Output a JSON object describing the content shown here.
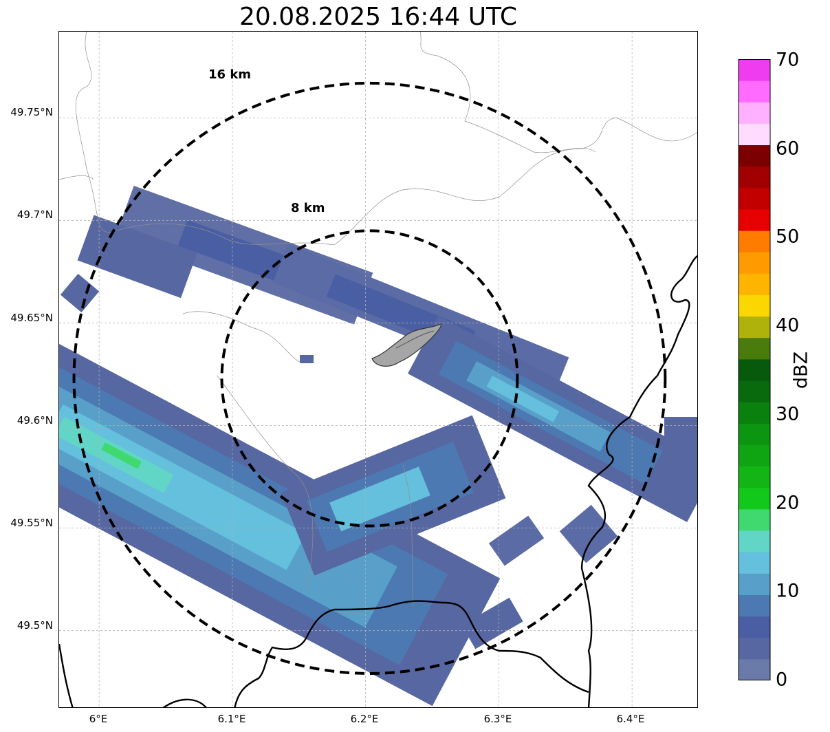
{
  "title": "20.08.2025 16:44 UTC",
  "map": {
    "lon_range": [
      5.97,
      6.45
    ],
    "lat_range": [
      49.462,
      49.792
    ],
    "radar_site": {
      "lon": 6.203,
      "lat": 49.623
    },
    "rings": [
      {
        "label": "8 km",
        "radius_km": 8
      },
      {
        "label": "16 km",
        "radius_km": 16
      }
    ],
    "gridlines": true
  },
  "axes": {
    "lat_ticks": [
      {
        "value": 49.75,
        "label": "49.75°N"
      },
      {
        "value": 49.7,
        "label": "49.7°N"
      },
      {
        "value": 49.65,
        "label": "49.65°N"
      },
      {
        "value": 49.6,
        "label": "49.6°N"
      },
      {
        "value": 49.55,
        "label": "49.55°N"
      },
      {
        "value": 49.5,
        "label": "49.5°N"
      }
    ],
    "lon_ticks": [
      {
        "value": 6.0,
        "label": "6°E"
      },
      {
        "value": 6.1,
        "label": "6.1°E"
      },
      {
        "value": 6.2,
        "label": "6.2°E"
      },
      {
        "value": 6.3,
        "label": "6.3°E"
      },
      {
        "value": 6.4,
        "label": "6.4°E"
      }
    ]
  },
  "colorbar": {
    "unit": "dBZ",
    "min": 0,
    "max": 70,
    "tick_labels": [
      "0",
      "10",
      "20",
      "30",
      "40",
      "50",
      "60",
      "70"
    ],
    "colors": [
      "#6a7aa9",
      "#5767a1",
      "#4a5ea3",
      "#4c79b2",
      "#58a0ca",
      "#64c0dd",
      "#62d6c6",
      "#3fd96f",
      "#12c81a",
      "#12b514",
      "#0fa412",
      "#0c9510",
      "#0a800f",
      "#096a0d",
      "#075a0b",
      "#4a7b0d",
      "#aeb20a",
      "#fad700",
      "#ffb400",
      "#ff9b00",
      "#ff7c00",
      "#e60000",
      "#c20000",
      "#a00000",
      "#7c0000",
      "#ffdcff",
      "#ffb0ff",
      "#ff6aff",
      "#f03cf0"
    ]
  },
  "colors": {
    "echo_weak": "#5b6ba5",
    "echo_dark": "#4a5ea3",
    "echo_mid": "#58a0ca",
    "echo_light": "#64c0dd",
    "echo_teal": "#62d6c6",
    "echo_green": "#3fd96f",
    "city_fill": "#a6a6a6"
  }
}
